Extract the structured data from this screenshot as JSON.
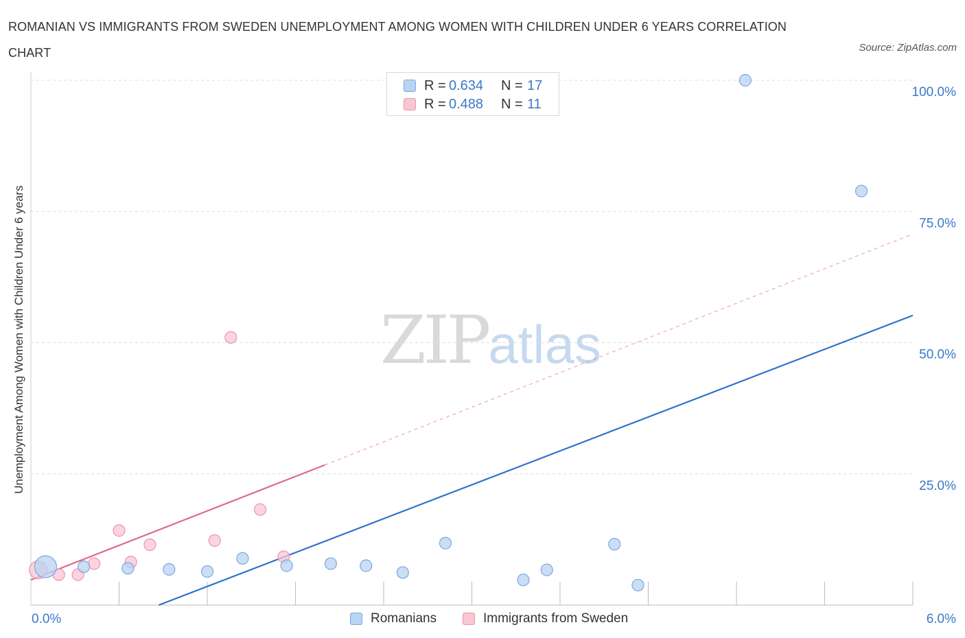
{
  "header": {
    "title": "ROMANIAN VS IMMIGRANTS FROM SWEDEN UNEMPLOYMENT AMONG WOMEN WITH CHILDREN UNDER 6 YEARS CORRELATION CHART",
    "source": "Source: ZipAtlas.com"
  },
  "watermark": {
    "zip": "ZIP",
    "atlas": "atlas"
  },
  "legend": {
    "romanians": {
      "r_label": "R =",
      "r_value": "0.634",
      "n_label": "N =",
      "n_value": "17"
    },
    "sweden": {
      "r_label": "R =",
      "r_value": "0.488",
      "n_label": "N =",
      "n_value": "11"
    }
  },
  "bottom_legend": {
    "romanians": "Romanians",
    "sweden": "Immigrants from Sweden"
  },
  "colors": {
    "romanians_fill": "#b9d3f3",
    "romanians_stroke": "#7aa7de",
    "romanians_line": "#2f72d0",
    "sweden_fill": "#f9c6d4",
    "sweden_stroke": "#ec94ae",
    "sweden_line": "#e0698f",
    "axis_label": "#3a78c9",
    "grid": "#dddddd"
  },
  "chart_data": {
    "type": "scatter",
    "title": "ROMANIAN VS IMMIGRANTS FROM SWEDEN UNEMPLOYMENT AMONG WOMEN WITH CHILDREN UNDER 6 YEARS CORRELATION CHART",
    "xlabel": "",
    "ylabel": "Unemployment Among Women with Children Under 6 years",
    "xlim": [
      0,
      6
    ],
    "ylim": [
      0,
      100
    ],
    "x_tick_labels": [
      "0.0%",
      "6.0%"
    ],
    "y_ticks": [
      25,
      50,
      75,
      100
    ],
    "y_tick_labels": [
      "25.0%",
      "50.0%",
      "75.0%",
      "100.0%"
    ],
    "grid": true,
    "series": [
      {
        "name": "Romanians",
        "points": [
          {
            "x": 0.1,
            "y": 7.3,
            "size": "large"
          },
          {
            "x": 0.36,
            "y": 7.3
          },
          {
            "x": 0.66,
            "y": 7.0
          },
          {
            "x": 0.94,
            "y": 6.8
          },
          {
            "x": 1.2,
            "y": 6.4
          },
          {
            "x": 1.44,
            "y": 8.9
          },
          {
            "x": 1.74,
            "y": 7.5
          },
          {
            "x": 2.04,
            "y": 7.9
          },
          {
            "x": 2.28,
            "y": 7.5
          },
          {
            "x": 2.53,
            "y": 6.2
          },
          {
            "x": 2.82,
            "y": 11.8
          },
          {
            "x": 3.35,
            "y": 4.8
          },
          {
            "x": 3.51,
            "y": 6.7
          },
          {
            "x": 3.97,
            "y": 11.6
          },
          {
            "x": 4.13,
            "y": 3.8
          },
          {
            "x": 4.86,
            "y": 100.0
          },
          {
            "x": 5.65,
            "y": 78.9
          }
        ],
        "trend": {
          "x": [
            0.87,
            6.0
          ],
          "y": [
            0.0,
            55.2
          ]
        }
      },
      {
        "name": "Immigrants from Sweden",
        "points": [
          {
            "x": 0.05,
            "y": 6.7,
            "size": "large"
          },
          {
            "x": 0.19,
            "y": 5.8
          },
          {
            "x": 0.32,
            "y": 5.8
          },
          {
            "x": 0.43,
            "y": 7.9
          },
          {
            "x": 0.6,
            "y": 14.2
          },
          {
            "x": 0.68,
            "y": 8.2
          },
          {
            "x": 0.81,
            "y": 11.5
          },
          {
            "x": 1.25,
            "y": 12.3
          },
          {
            "x": 1.36,
            "y": 51.0
          },
          {
            "x": 1.56,
            "y": 18.2
          },
          {
            "x": 1.72,
            "y": 9.2
          }
        ],
        "trend": {
          "x": [
            0.0,
            2.0
          ],
          "y": [
            4.8,
            26.7
          ]
        },
        "trend_extension": {
          "x": [
            2.0,
            6.0
          ],
          "y": [
            26.7,
            70.7
          ]
        }
      }
    ]
  }
}
